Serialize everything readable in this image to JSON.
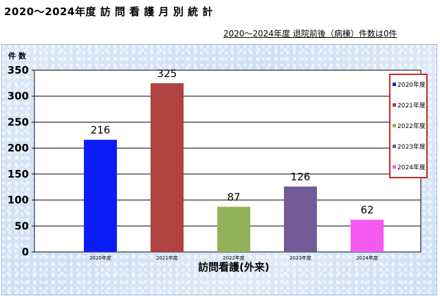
{
  "page": {
    "title": "2020～2024年度 訪 問 看 護 月 別 統 計",
    "subtitle": "2020～2024年度 退院前後（病棟）件数は0件"
  },
  "chart_data": {
    "type": "bar",
    "categories": [
      "2020年度",
      "2021年度",
      "2022年度",
      "2023年度",
      "2024年度"
    ],
    "values": [
      216,
      325,
      87,
      126,
      62
    ],
    "colors": [
      "#0b1cf5",
      "#b0423f",
      "#92b25a",
      "#735b98",
      "#f55af0"
    ],
    "ylabel": "件 数",
    "xlabel": "訪問看護(外来)",
    "ylim": [
      0,
      350
    ],
    "yticks": [
      0,
      50,
      100,
      150,
      200,
      250,
      300,
      350
    ],
    "grid": true,
    "legend": {
      "placement": "right",
      "entries": [
        "2020年度",
        "2021年度",
        "2022年度",
        "2023年度",
        "2024年度"
      ],
      "border_color": "#d42020"
    }
  }
}
